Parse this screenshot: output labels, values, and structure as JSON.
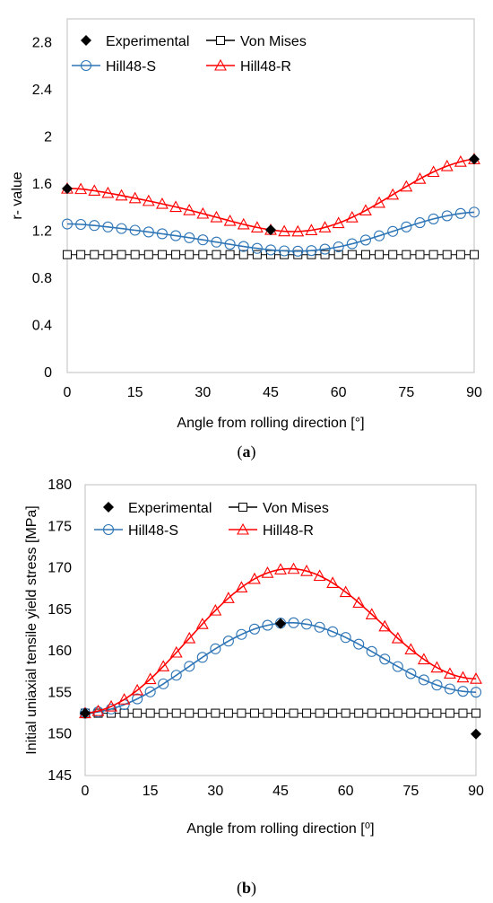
{
  "chart_data": [
    {
      "type": "line",
      "caption": {
        "open": "(",
        "letter": "a",
        "close": ")"
      },
      "xlabel": "Angle from rolling direction [°]",
      "ylabel": "r- value",
      "xlim": [
        0,
        90
      ],
      "ylim": [
        0,
        3
      ],
      "xticks": [
        0,
        15,
        30,
        45,
        60,
        75,
        90
      ],
      "yticks": [
        0,
        0.4,
        0.8,
        1.2,
        1.6,
        2,
        2.4,
        2.8
      ],
      "ytick_labels": [
        "0",
        "0.4",
        "0.8",
        "1.2",
        "1.6",
        "2",
        "2.4",
        "2.8"
      ],
      "grid": false,
      "legend_position": "top",
      "series": [
        {
          "name": "Experimental",
          "marker": "diamond",
          "line": false,
          "color": "#000000",
          "x": [
            0,
            45,
            90
          ],
          "y": [
            1.56,
            1.21,
            1.81
          ]
        },
        {
          "name": "Von Mises",
          "marker": "square",
          "line": true,
          "color": "#000000",
          "x": [
            0,
            90
          ],
          "y": [
            1.0,
            1.0
          ]
        },
        {
          "name": "Hill48-S",
          "marker": "circle",
          "line": true,
          "color": "#2e75b6",
          "x": [
            0,
            90
          ],
          "y": [
            1.26,
            1.36
          ],
          "mid": 1.04
        },
        {
          "name": "Hill48-R",
          "marker": "triangle",
          "line": true,
          "color": "#ff0000",
          "x": [
            0,
            90
          ],
          "y": [
            1.56,
            1.81
          ],
          "mid": 1.21
        }
      ]
    },
    {
      "type": "line",
      "caption": {
        "open": "(",
        "letter": "b",
        "close": ")"
      },
      "xlabel": "Angle from rolling direction [⁰]",
      "ylabel": "Initial uniaxial tensile yield stress [MPa]",
      "xlim": [
        0,
        90
      ],
      "ylim": [
        145,
        180
      ],
      "xticks": [
        0,
        15,
        30,
        45,
        60,
        75,
        90
      ],
      "yticks": [
        145,
        150,
        155,
        160,
        165,
        170,
        175,
        180
      ],
      "ytick_labels": [
        "145",
        "150",
        "155",
        "160",
        "165",
        "170",
        "175",
        "180"
      ],
      "grid": false,
      "legend_position": "top",
      "series": [
        {
          "name": "Experimental",
          "marker": "diamond",
          "line": false,
          "color": "#000000",
          "x": [
            0,
            45,
            90
          ],
          "y": [
            152.5,
            163.3,
            150.0
          ]
        },
        {
          "name": "Von Mises",
          "marker": "square",
          "line": true,
          "color": "#000000",
          "x": [
            0,
            90
          ],
          "y": [
            152.5,
            152.5
          ]
        },
        {
          "name": "Hill48-S",
          "marker": "circle",
          "line": true,
          "color": "#2e75b6",
          "x": [
            0,
            90
          ],
          "y": [
            152.5,
            155.0
          ],
          "peak": 163.4
        },
        {
          "name": "Hill48-R",
          "marker": "triangle",
          "line": true,
          "color": "#ff0000",
          "x": [
            0,
            90
          ],
          "y": [
            152.5,
            156.6
          ],
          "peak": 169.9
        }
      ]
    }
  ]
}
